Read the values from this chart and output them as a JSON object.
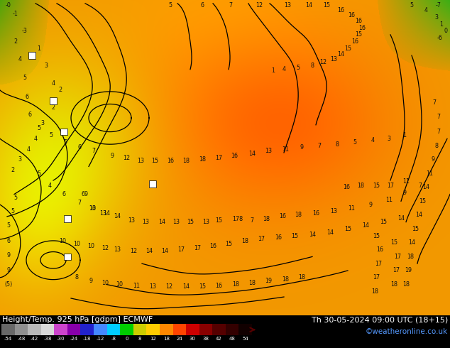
{
  "title_left": "Height/Temp. 925 hPa [gdpm] ECMWF",
  "title_right": "Th 30-05-2024 09:00 UTC (18+15)",
  "copyright": "©weatheronline.co.uk",
  "colorbar_labels": [
    "-54",
    "-48",
    "-42",
    "-38",
    "-30",
    "-24",
    "-18",
    "-12",
    "-8",
    "0",
    "8",
    "12",
    "18",
    "24",
    "30",
    "38",
    "42",
    "48",
    "54"
  ],
  "colorbar_colors": [
    "#686868",
    "#909090",
    "#b8b8b8",
    "#d8d8d8",
    "#cc44cc",
    "#8800aa",
    "#2222cc",
    "#4488ff",
    "#00ccff",
    "#00cc00",
    "#cccc00",
    "#ffcc00",
    "#ff8800",
    "#ff4400",
    "#cc0000",
    "#880000",
    "#550000",
    "#330000",
    "#110000"
  ],
  "figsize": [
    6.34,
    4.9
  ],
  "dpi": 100,
  "title_fontsize": 8.0,
  "copyright_fontsize": 7.5
}
